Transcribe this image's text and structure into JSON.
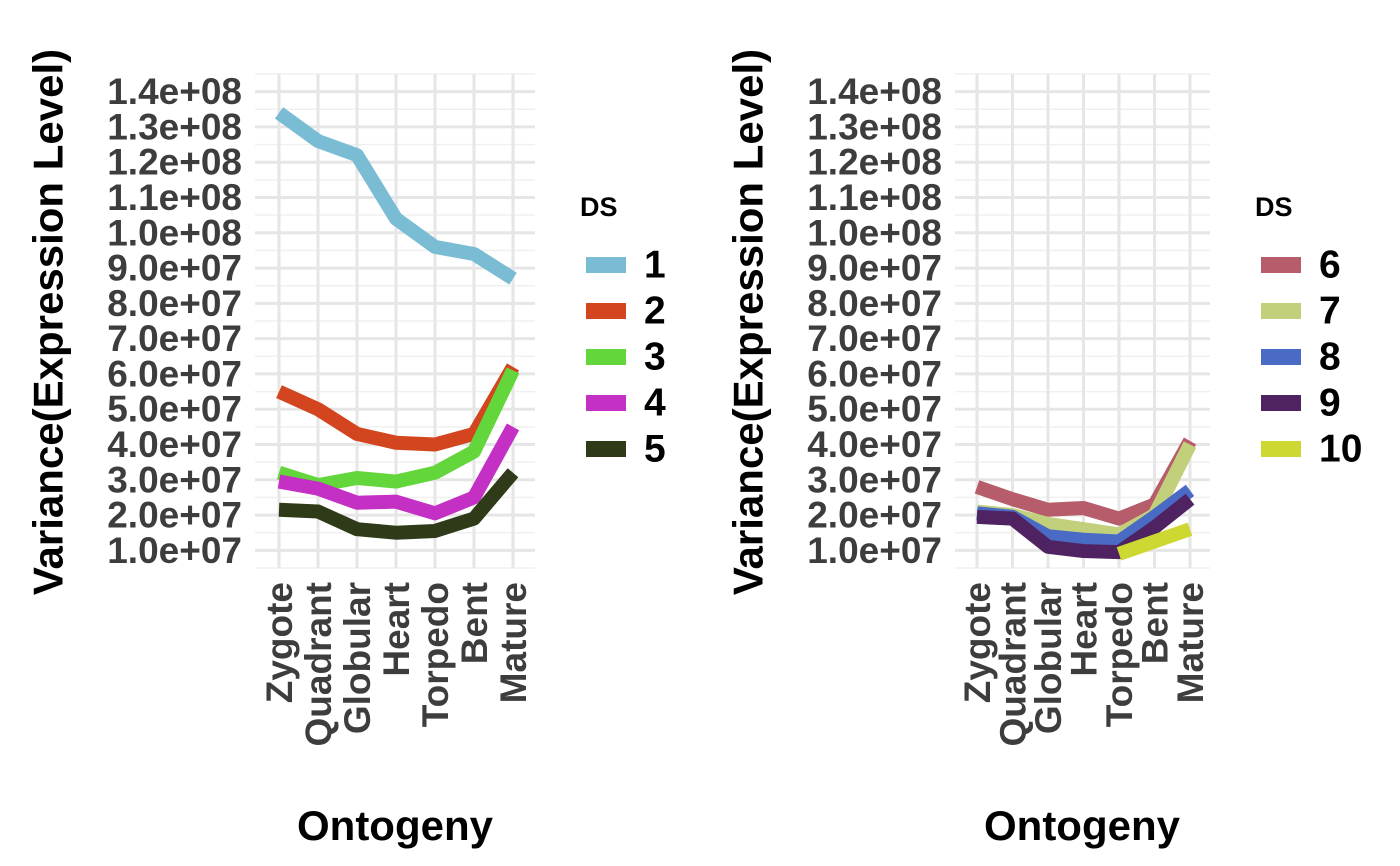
{
  "chart_data": [
    {
      "type": "line",
      "xlabel": "Ontogeny",
      "ylabel": "Variance(Expression Level)",
      "categories": [
        "Zygote",
        "Quadrant",
        "Globular",
        "Heart",
        "Torpedo",
        "Bent",
        "Mature"
      ],
      "ylim": [
        5000000,
        145000000
      ],
      "yticks": [
        "1.0e+07",
        "2.0e+07",
        "3.0e+07",
        "4.0e+07",
        "5.0e+07",
        "6.0e+07",
        "7.0e+07",
        "8.0e+07",
        "9.0e+07",
        "1.0e+08",
        "1.1e+08",
        "1.2e+08",
        "1.3e+08",
        "1.4e+08"
      ],
      "grid": true,
      "legend": {
        "title": "DS",
        "position": "right"
      },
      "series": [
        {
          "name": "1",
          "color": "#7bbcd5",
          "values": [
            134000000,
            126000000,
            122000000,
            104000000,
            96000000,
            94000000,
            87000000
          ]
        },
        {
          "name": "2",
          "color": "#d2451e",
          "values": [
            55000000,
            50000000,
            43000000,
            40500000,
            40000000,
            43000000,
            62000000
          ]
        },
        {
          "name": "3",
          "color": "#62d63b",
          "values": [
            32000000,
            28500000,
            30500000,
            29500000,
            32000000,
            38000000,
            61000000
          ]
        },
        {
          "name": "4",
          "color": "#c42fc4",
          "values": [
            29500000,
            27500000,
            23500000,
            23800000,
            20500000,
            25000000,
            45000000
          ]
        },
        {
          "name": "5",
          "color": "#2e3a18",
          "values": [
            21500000,
            21000000,
            16000000,
            15000000,
            15500000,
            19000000,
            32000000
          ]
        }
      ]
    },
    {
      "type": "line",
      "xlabel": "Ontogeny",
      "ylabel": "Variance(Expression Level)",
      "categories": [
        "Zygote",
        "Quadrant",
        "Globular",
        "Heart",
        "Torpedo",
        "Bent",
        "Mature"
      ],
      "ylim": [
        5000000,
        145000000
      ],
      "yticks": [
        "1.0e+07",
        "2.0e+07",
        "3.0e+07",
        "4.0e+07",
        "5.0e+07",
        "6.0e+07",
        "7.0e+07",
        "8.0e+07",
        "9.0e+07",
        "1.0e+08",
        "1.1e+08",
        "1.2e+08",
        "1.3e+08",
        "1.4e+08"
      ],
      "grid": true,
      "legend": {
        "title": "DS",
        "position": "right"
      },
      "series": [
        {
          "name": "6",
          "color": "#b75c6a",
          "values": [
            28000000,
            24500000,
            21500000,
            22000000,
            19000000,
            23000000,
            41000000
          ]
        },
        {
          "name": "7",
          "color": "#c2d07c",
          "values": [
            21000000,
            20000000,
            17500000,
            16000000,
            14500000,
            20000000,
            40000000
          ]
        },
        {
          "name": "8",
          "color": "#4a6bc5",
          "values": [
            20500000,
            19500000,
            14000000,
            13000000,
            12500000,
            19500000,
            27000000
          ]
        },
        {
          "name": "9",
          "color": "#4f2361",
          "values": [
            19500000,
            19000000,
            11000000,
            9800000,
            9500000,
            16500000,
            24500000
          ]
        },
        {
          "name": "10",
          "color": "#cdd932",
          "values": [
            null,
            null,
            null,
            null,
            9000000,
            12500000,
            16000000
          ]
        }
      ]
    }
  ]
}
